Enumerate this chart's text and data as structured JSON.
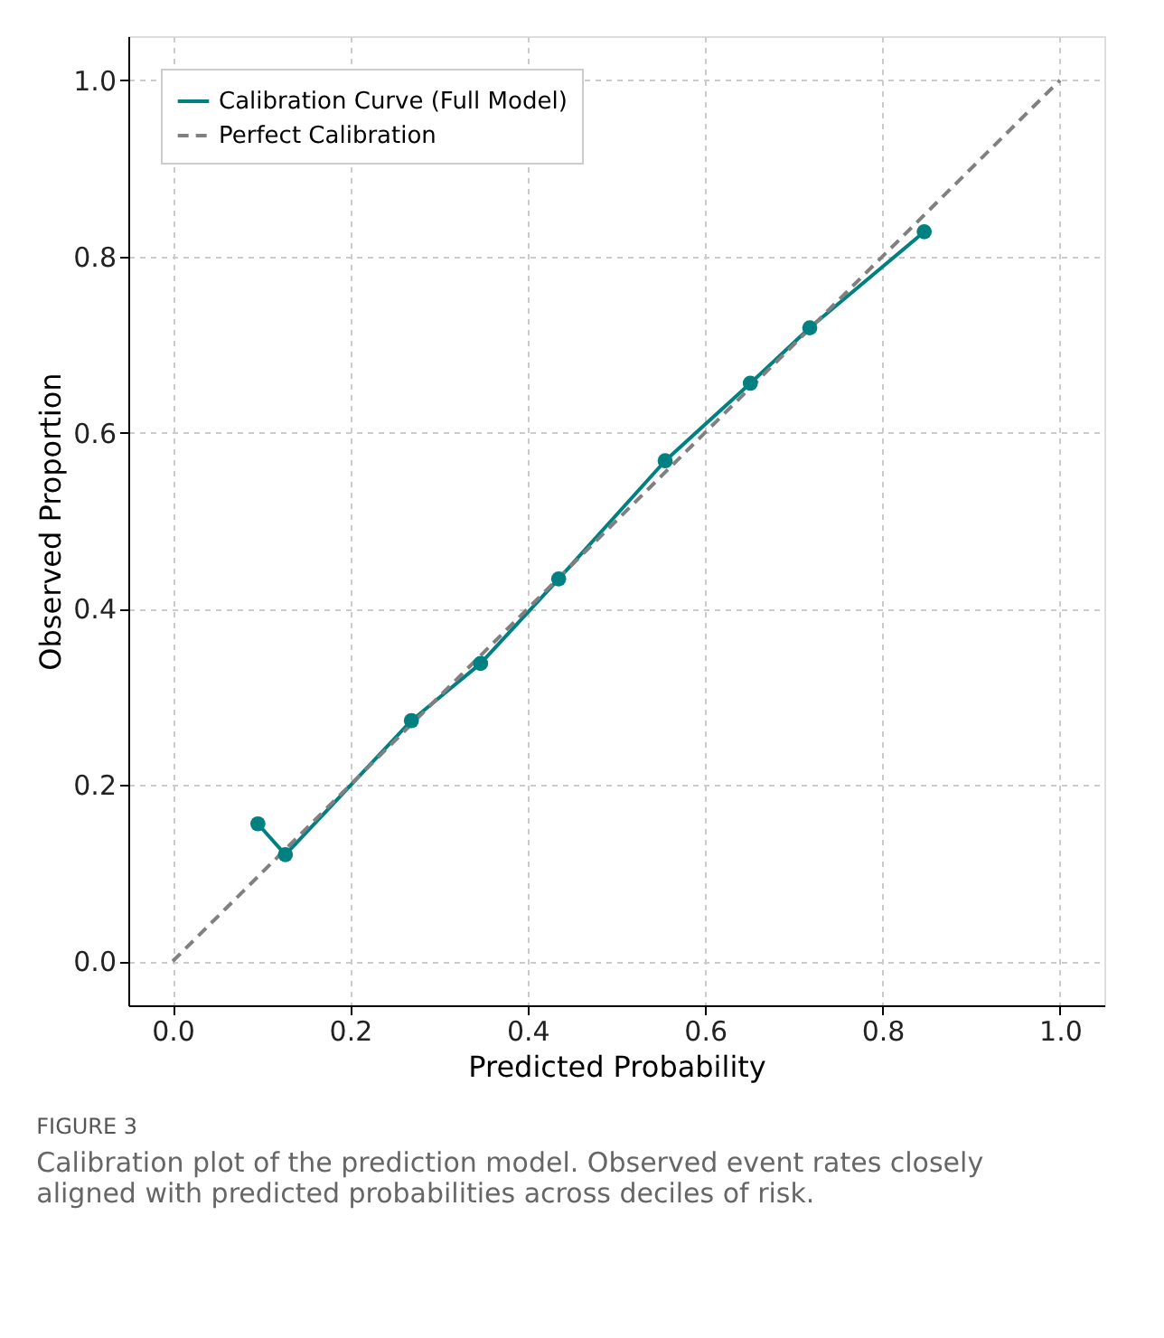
{
  "chart_data": {
    "type": "line",
    "xlabel": "Predicted Probability",
    "ylabel": "Observed Proportion",
    "series": [
      {
        "name": "Calibration Curve (Full Model)",
        "color": "#008080",
        "marker": "circle",
        "line_style": "solid",
        "x": [
          0.096,
          0.127,
          0.269,
          0.347,
          0.435,
          0.555,
          0.651,
          0.718,
          0.847
        ],
        "values": [
          0.156,
          0.121,
          0.273,
          0.338,
          0.434,
          0.568,
          0.656,
          0.719,
          0.828
        ]
      },
      {
        "name": "Perfect Calibration",
        "color": "#808080",
        "marker": "none",
        "line_style": "dashed",
        "x": [
          0,
          1
        ],
        "values": [
          0,
          1
        ]
      }
    ],
    "xlim": [
      -0.05,
      1.05
    ],
    "ylim": [
      -0.05,
      1.05
    ],
    "xticks": [
      {
        "value": 0,
        "label": "0.0"
      },
      0.2,
      0.4,
      0.6,
      0.8,
      {
        "value": 1,
        "label": "1.0"
      }
    ],
    "yticks": [
      {
        "value": 0,
        "label": "0.0"
      },
      0.2,
      0.4,
      0.6,
      0.8,
      {
        "value": 1,
        "label": "1.0"
      }
    ],
    "grid": true,
    "legend": "top left",
    "annotations": [
      "FIGURE 3",
      "Calibration plot of the prediction model. Observed event rates closely aligned with predicted probabilities across deciles of risk."
    ]
  }
}
